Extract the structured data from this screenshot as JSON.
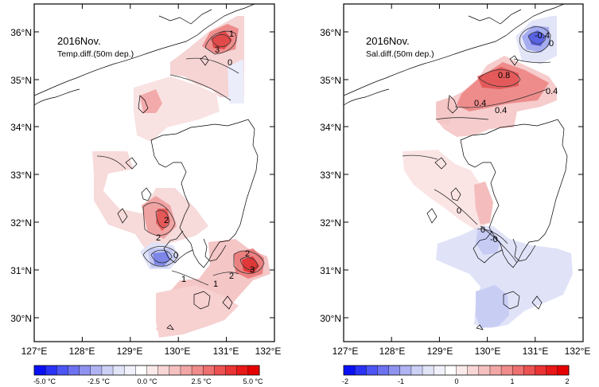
{
  "panels": [
    {
      "title": "2016Nov.",
      "subtitle": "Temp.diff.(50m dep.)",
      "contour_labels": [
        "3",
        "1",
        "0",
        "2",
        "2",
        "2",
        "3",
        "1",
        "1",
        "2",
        "0"
      ],
      "colorbar": {
        "tick_labels": [
          "-5.0 °C",
          "-2.5 °C",
          "0.0 °C",
          "2.5 °C",
          "5.0 °C"
        ],
        "range": [
          -5.0,
          5.0
        ],
        "colors": [
          "#0a10f5",
          "#2a32f5",
          "#4d55f5",
          "#6c72f0",
          "#8e93f0",
          "#b0b3f2",
          "#ccd0f5",
          "#e2e4f8",
          "#f0f1fb",
          "#ffffff",
          "#fbeaea",
          "#f8d6d6",
          "#f5c0c0",
          "#f2a6a6",
          "#f08c8c",
          "#ee7070",
          "#ec5252",
          "#ea3434",
          "#e81818",
          "#e60000"
        ]
      }
    },
    {
      "title": "2016Nov.",
      "subtitle": "Sal.diff.(50m dep.)",
      "contour_labels": [
        "-0.4",
        "0",
        "0.8",
        "0.4",
        "0.4",
        "0.4",
        "0",
        "0",
        "-0."
      ],
      "colorbar": {
        "tick_labels": [
          "-2",
          "-1",
          "0",
          "1",
          "2"
        ],
        "range": [
          -2,
          2
        ],
        "colors": [
          "#0a10f5",
          "#2a32f5",
          "#4d55f5",
          "#6c72f0",
          "#8e93f0",
          "#b0b3f2",
          "#ccd0f5",
          "#e2e4f8",
          "#f0f1fb",
          "#ffffff",
          "#fbeaea",
          "#f8d6d6",
          "#f5c0c0",
          "#f2a6a6",
          "#f08c8c",
          "#ee7070",
          "#ec5252",
          "#ea3434",
          "#e81818",
          "#e60000"
        ]
      }
    }
  ],
  "lat_labels": [
    "36°N",
    "35°N",
    "34°N",
    "33°N",
    "32°N",
    "31°N",
    "30°N"
  ],
  "lon_labels": [
    "127°E",
    "128°E",
    "129°E",
    "130°E",
    "131°E",
    "132°E"
  ],
  "style": {
    "positive_color": "#e84040",
    "negative_color": "#4a55e0",
    "coast_color": "#000000"
  }
}
